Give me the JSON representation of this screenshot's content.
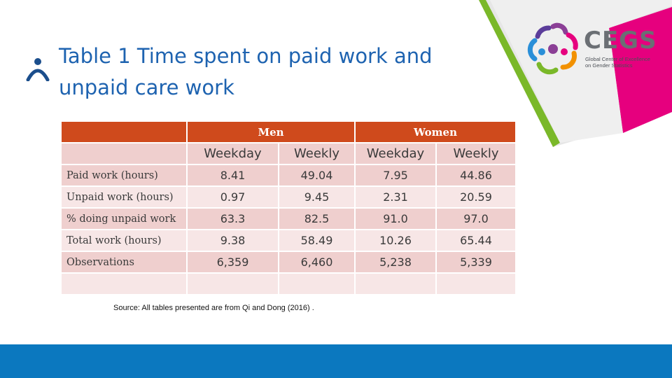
{
  "title": {
    "line1": "Table 1 Time spent on paid work and",
    "line2": "unpaid care work"
  },
  "logo": {
    "text": "CEGS",
    "sub_line1": "Global Center of Excellence",
    "sub_line2": "on Gender Statistics",
    "colors": [
      "#8b3f96",
      "#e6007e",
      "#f29100",
      "#7ab829",
      "#2a8fd8"
    ]
  },
  "colors": {
    "title": "#1e63b0",
    "table_header": "#cf4a1c",
    "row_dark": "#efcfce",
    "row_light": "#f7e6e6",
    "footer": "#0b78bf",
    "accent_green": "#7ab829",
    "accent_pink": "#e6007e"
  },
  "table": {
    "groups": [
      "Men",
      "Women"
    ],
    "subheaders": [
      "Weekday",
      "Weekly",
      "Weekday",
      "Weekly"
    ],
    "rows": [
      {
        "label": "Paid work (hours)",
        "values": [
          "8.41",
          "49.04",
          "7.95",
          "44.86"
        ]
      },
      {
        "label": "Unpaid work (hours)",
        "values": [
          "0.97",
          "9.45",
          "2.31",
          "20.59"
        ]
      },
      {
        "label": "% doing unpaid work",
        "values": [
          "63.3",
          "82.5",
          "91.0",
          "97.0"
        ]
      },
      {
        "label": "Total work (hours)",
        "values": [
          "9.38",
          "58.49",
          "10.26",
          "65.44"
        ]
      },
      {
        "label": "Observations",
        "values": [
          "6,359",
          "6,460",
          "5,238",
          "5,339"
        ]
      },
      {
        "label": "",
        "values": [
          "",
          "",
          "",
          ""
        ]
      }
    ]
  },
  "source": "Source: All tables presented are from Qi and Dong (2016) ."
}
